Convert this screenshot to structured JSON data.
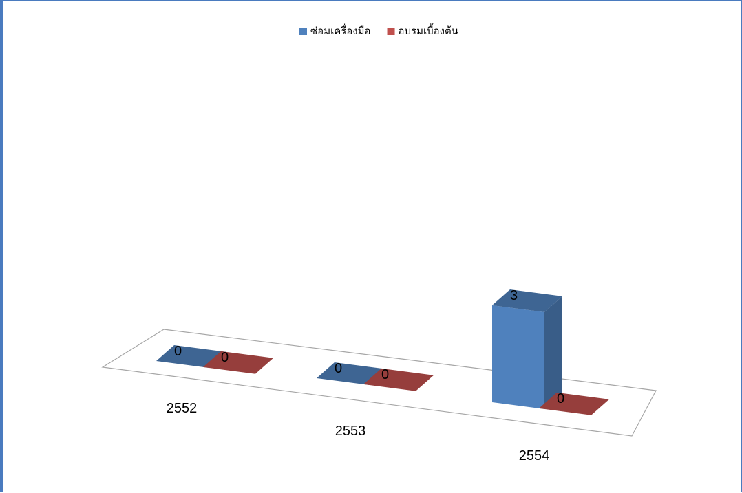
{
  "chart_data": {
    "type": "bar",
    "title": "",
    "xlabel": "",
    "ylabel": "",
    "categories": [
      "2552",
      "2553",
      "2554"
    ],
    "series": [
      {
        "name": "ซ่อมเครื่องมือ",
        "values": [
          0,
          0,
          3
        ],
        "color": "#4f81bd"
      },
      {
        "name": "อบรมเบื้องต้น",
        "values": [
          0,
          0,
          0
        ],
        "color": "#c0504d"
      }
    ],
    "data_labels": true,
    "legend_position": "top",
    "grid": false,
    "style": "3d-perspective"
  }
}
